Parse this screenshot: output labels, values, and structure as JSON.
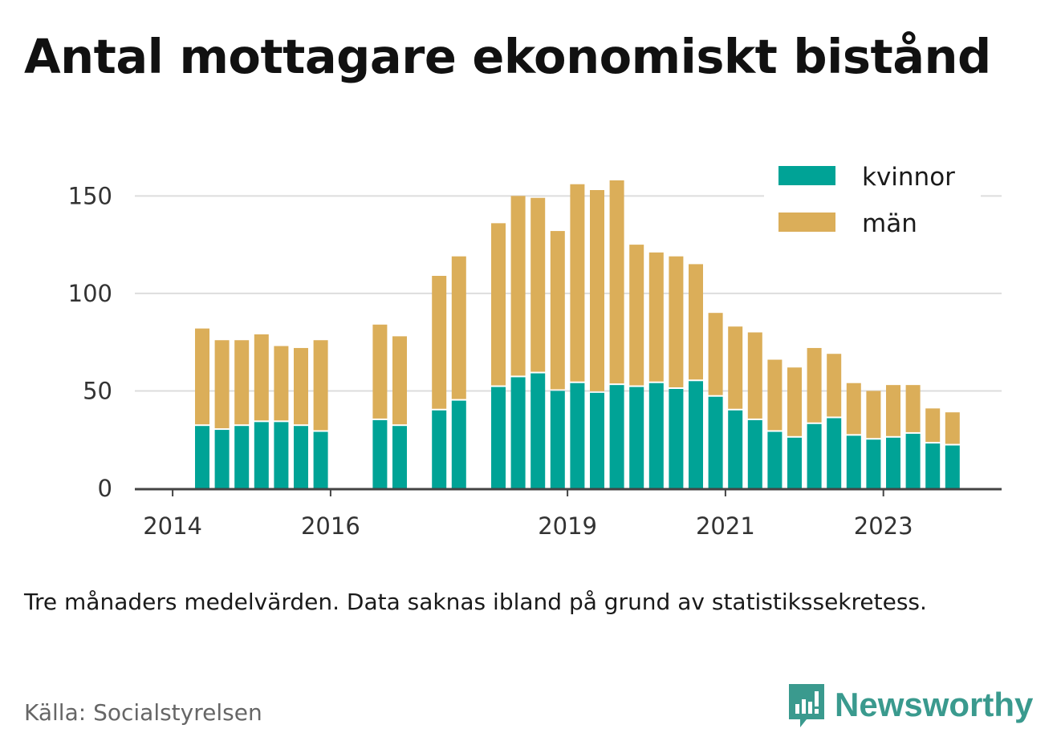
{
  "title": "Antal mottagare ekonomiskt bistånd",
  "note": "Tre månaders medelvärden. Data saknas ibland på grund av statistikssekretess.",
  "source": "Källa: Socialstyrelsen",
  "brand": {
    "name": "Newsworthy",
    "icon": "newsworthy-logo-icon",
    "color": "#3a9a8e"
  },
  "chart_data": {
    "type": "bar",
    "stacked": true,
    "x_ticks": [
      "2014",
      "2016",
      "2019",
      "2021",
      "2023"
    ],
    "y_ticks": [
      0,
      50,
      100,
      150
    ],
    "ylim": [
      0,
      160
    ],
    "grid": true,
    "legend_position": "top-right",
    "series": [
      {
        "name": "kvinnor",
        "color": "#00a396",
        "values": [
          32,
          30,
          32,
          34,
          34,
          32,
          29,
          null,
          null,
          35,
          32,
          null,
          40,
          45,
          null,
          52,
          57,
          59,
          50,
          54,
          49,
          53,
          52,
          54,
          51,
          55,
          47,
          40,
          35,
          29,
          26,
          33,
          36,
          27,
          25,
          26,
          28,
          23,
          22
        ]
      },
      {
        "name": "män",
        "color": "#dbae59",
        "values": [
          50,
          46,
          44,
          45,
          39,
          40,
          47,
          null,
          null,
          49,
          46,
          null,
          69,
          74,
          null,
          84,
          93,
          90,
          82,
          102,
          104,
          105,
          73,
          67,
          68,
          60,
          43,
          43,
          45,
          37,
          36,
          39,
          33,
          27,
          25,
          27,
          25,
          18,
          17
        ]
      }
    ]
  }
}
